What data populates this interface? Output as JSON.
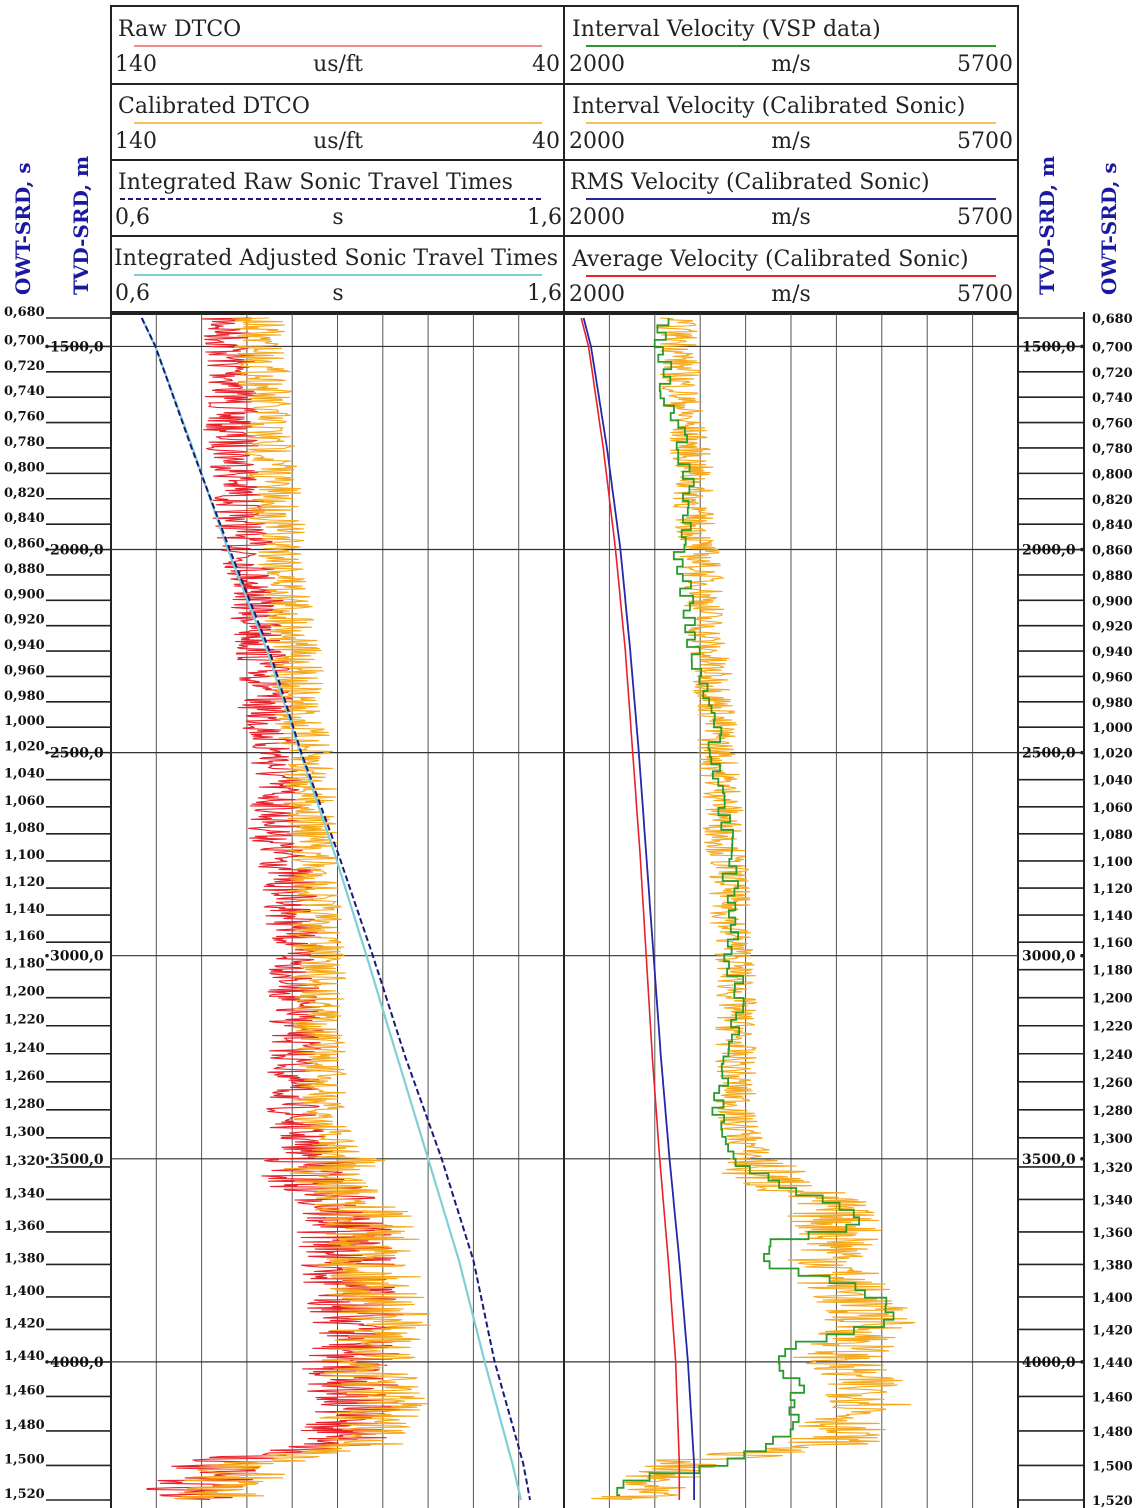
{
  "colors": {
    "raw_dtco": "#e8212a",
    "calibrated_dtco": "#f5a81c",
    "vsp_interval": "#2a9b2a",
    "calibrated_interval": "#f5a81c",
    "rms": "#2626a8",
    "average": "#e8212a",
    "int_raw_tt": "#1a1a7a",
    "int_adj_tt": "#7fd0d4",
    "axis_label": "#1a1aa0"
  },
  "axes": {
    "left_owt_label": "OWT-SRD, s",
    "left_tvd_label": "TVD-SRD, m",
    "right_tvd_label": "TVD-SRD, m",
    "right_owt_label": "OWT-SRD, s"
  },
  "headers": {
    "left": [
      {
        "title": "Raw DTCO",
        "min": "140",
        "unit": "us/ft",
        "max": "40"
      },
      {
        "title": "Calibrated DTCO",
        "min": "140",
        "unit": "us/ft",
        "max": "40"
      },
      {
        "title": "Integrated Raw Sonic Travel Times",
        "min": "0,6",
        "unit": "s",
        "max": "1,6"
      },
      {
        "title": "Integrated Adjusted Sonic Travel Times",
        "min": "0,6",
        "unit": "s",
        "max": "1,6"
      }
    ],
    "right": [
      {
        "title": "Interval Velocity (VSP data)",
        "min": "2000",
        "unit": "m/s",
        "max": "5700"
      },
      {
        "title": "Interval Velocity (Calibrated Sonic)",
        "min": "2000",
        "unit": "m/s",
        "max": "5700"
      },
      {
        "title": "RMS Velocity (Calibrated Sonic)",
        "min": "2000",
        "unit": "m/s",
        "max": "5700"
      },
      {
        "title": "Average Velocity (Calibrated Sonic)",
        "min": "2000",
        "unit": "m/s",
        "max": "5700"
      }
    ]
  },
  "chart_data": {
    "type": "line",
    "tvd_ticks": [
      "1500,0",
      "2000,0",
      "2500,0",
      "3000,0",
      "3500,0",
      "4000,0"
    ],
    "owt_ticks": [
      "0,680",
      "0,700",
      "0,720",
      "0,740",
      "0,760",
      "0,780",
      "0,800",
      "0,820",
      "0,840",
      "0,860",
      "0,880",
      "0,900",
      "0,920",
      "0,940",
      "0,960",
      "0,980",
      "1,000",
      "1,020",
      "1,040",
      "1,060",
      "1,080",
      "1,100",
      "1,120",
      "1,140",
      "1,160",
      "1,180",
      "1,200",
      "1,220",
      "1,240",
      "1,260",
      "1,280",
      "1,300",
      "1,320",
      "1,340",
      "1,360",
      "1,380",
      "1,400",
      "1,420",
      "1,440",
      "1,460",
      "1,480",
      "1,500",
      "1,520"
    ],
    "depth_range_m": [
      1430,
      4340
    ],
    "left_track": {
      "dtco_range_usft": [
        140,
        40
      ],
      "time_range_s": [
        0.6,
        1.6
      ],
      "grid_lines": 10,
      "series": [
        {
          "name": "Raw DTCO",
          "depth_m": [
            1430,
            1500,
            1600,
            1700,
            1800,
            1900,
            2000,
            2100,
            2200,
            2300,
            2400,
            2500,
            2600,
            2700,
            2800,
            2900,
            3000,
            3100,
            3200,
            3300,
            3400,
            3500,
            3550,
            3600,
            3700,
            3750,
            3800,
            3900,
            3950,
            4000,
            4050,
            4100,
            4150,
            4200,
            4250,
            4300,
            4340
          ],
          "values": [
            115,
            114,
            113,
            114,
            112,
            112,
            110,
            108,
            108,
            106,
            106,
            104,
            103,
            104,
            101,
            100,
            99,
            100,
            99,
            100,
            100,
            96,
            98,
            90,
            88,
            88,
            88,
            85,
            86,
            88,
            86,
            86,
            88,
            88,
            117,
            120,
            124
          ]
        },
        {
          "name": "Calibrated DTCO",
          "depth_m": [
            1430,
            1500,
            1600,
            1700,
            1800,
            1900,
            2000,
            2100,
            2200,
            2300,
            2400,
            2500,
            2600,
            2700,
            2800,
            2900,
            3000,
            3100,
            3200,
            3300,
            3400,
            3500,
            3550,
            3600,
            3700,
            3750,
            3800,
            3900,
            3950,
            4000,
            4050,
            4100,
            4150,
            4200,
            4250,
            4300,
            4340
          ],
          "values": [
            108,
            107,
            106,
            106,
            104,
            104,
            102,
            101,
            100,
            99,
            99,
            97,
            96,
            96,
            95,
            95,
            94,
            94,
            94,
            94,
            94,
            90,
            92,
            85,
            82,
            84,
            82,
            80,
            82,
            84,
            82,
            80,
            84,
            84,
            110,
            114,
            118
          ]
        },
        {
          "name": "Integrated Raw Sonic Travel Times",
          "depth_m": [
            1430,
            1500,
            1750,
            2000,
            2250,
            2500,
            2750,
            3000,
            3250,
            3500,
            3750,
            4000,
            4250,
            4340
          ],
          "values": [
            0.668,
            0.698,
            0.778,
            0.862,
            0.95,
            1.02,
            1.102,
            1.178,
            1.25,
            1.33,
            1.4,
            1.447,
            1.51,
            1.525
          ]
        },
        {
          "name": "Integrated Adjusted Sonic Travel Times",
          "depth_m": [
            1430,
            1500,
            1750,
            2000,
            2250,
            2500,
            2750,
            3000,
            3250,
            3500,
            3750,
            4000,
            4250,
            4340
          ],
          "values": [
            0.668,
            0.698,
            0.78,
            0.858,
            0.945,
            1.018,
            1.094,
            1.164,
            1.232,
            1.3,
            1.368,
            1.425,
            1.486,
            1.505
          ]
        }
      ]
    },
    "right_track": {
      "velocity_range_ms": [
        2000,
        5700
      ],
      "grid_lines": 10,
      "series": [
        {
          "name": "Interval Velocity (VSP data)",
          "depth_m": [
            1430,
            1500,
            1550,
            1600,
            1700,
            1800,
            1900,
            2000,
            2100,
            2200,
            2300,
            2400,
            2500,
            2600,
            2700,
            2800,
            2900,
            3000,
            3100,
            3200,
            3300,
            3400,
            3450,
            3500,
            3550,
            3600,
            3650,
            3700,
            3750,
            3800,
            3850,
            3900,
            3950,
            4000,
            4050,
            4100,
            4150,
            4200,
            4250,
            4280,
            4300,
            4340
          ],
          "values": [
            2800,
            2750,
            2850,
            2800,
            2950,
            3000,
            3000,
            2950,
            3000,
            3050,
            3100,
            3250,
            3200,
            3300,
            3350,
            3350,
            3400,
            3350,
            3450,
            3350,
            3300,
            3250,
            3350,
            3450,
            3750,
            4200,
            4500,
            3650,
            3700,
            4300,
            4700,
            4600,
            3900,
            3700,
            4000,
            3800,
            3900,
            3650,
            3200,
            2500,
            2450,
            2400
          ]
        },
        {
          "name": "Interval Velocity (Calibrated Sonic)",
          "depth_m": [
            1430,
            1500,
            1600,
            1700,
            1800,
            1900,
            2000,
            2100,
            2200,
            2300,
            2400,
            2500,
            2600,
            2700,
            2800,
            2900,
            3000,
            3100,
            3200,
            3300,
            3400,
            3500,
            3550,
            3600,
            3700,
            3750,
            3800,
            3900,
            3950,
            4000,
            4050,
            4100,
            4150,
            4200,
            4250,
            4300,
            4340
          ],
          "values": [
            2900,
            2950,
            2950,
            3000,
            3050,
            3050,
            3100,
            3150,
            3150,
            3200,
            3250,
            3250,
            3300,
            3300,
            3350,
            3350,
            3400,
            3400,
            3400,
            3400,
            3400,
            3550,
            3650,
            4100,
            4300,
            4200,
            4250,
            4500,
            4400,
            4200,
            4400,
            4550,
            4300,
            4200,
            2900,
            2650,
            2500
          ]
        },
        {
          "name": "RMS Velocity (Calibrated Sonic)",
          "depth_m": [
            1430,
            1500,
            1750,
            2000,
            2250,
            2500,
            2750,
            3000,
            3250,
            3500,
            3750,
            4000,
            4250,
            4340
          ],
          "values": [
            2160,
            2220,
            2350,
            2460,
            2540,
            2610,
            2670,
            2730,
            2790,
            2860,
            2940,
            3010,
            3060,
            3060
          ]
        },
        {
          "name": "Average Velocity (Calibrated Sonic)",
          "depth_m": [
            1430,
            1500,
            1750,
            2000,
            2250,
            2500,
            2750,
            3000,
            3250,
            3500,
            3750,
            4000,
            4250,
            4340
          ],
          "values": [
            2140,
            2200,
            2320,
            2420,
            2500,
            2560,
            2620,
            2670,
            2720,
            2780,
            2850,
            2910,
            2940,
            2940
          ]
        }
      ]
    }
  }
}
